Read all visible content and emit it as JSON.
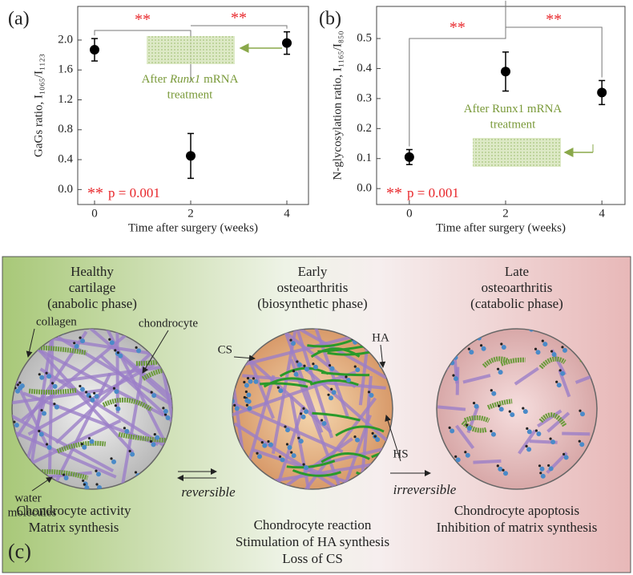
{
  "chart_data": [
    {
      "type": "scatter",
      "panel_label": "(a)",
      "xlabel": "Time after surgery (weeks)",
      "ylabel": "GaGs ratio, I₁₀₆₅/I₁₁₂₃",
      "x": [
        0,
        2,
        4
      ],
      "series": [
        {
          "color": "#000000",
          "values": [
            1.87,
            0.45,
            1.96
          ],
          "errors": [
            0.15,
            0.3,
            0.15
          ]
        }
      ],
      "xlim": [
        -0.35,
        4.45
      ],
      "ylim": [
        -0.2,
        2.45
      ],
      "xticks": [
        0,
        2,
        4
      ],
      "yticks": [
        {
          "value": 0,
          "label": "0.0"
        },
        0.4,
        0.8,
        1.2,
        1.6,
        {
          "value": 2,
          "label": "2.0"
        }
      ],
      "significance": [
        "**",
        "**"
      ],
      "significance_color": "#e8262a",
      "p_marker": "**",
      "p_text": "p = 0.001",
      "treatment_note": {
        "line1": [
          "After ",
          "Runx1",
          " mRNA"
        ],
        "italic": [
          1
        ],
        "line2": "treatment"
      },
      "note_color": "#7a9a3a"
    },
    {
      "type": "scatter",
      "panel_label": "(b)",
      "xlabel": "Time after surgery (weeks)",
      "ylabel": "N-glycosylation ratio, I₁₁₆₅/I₈₅₀",
      "x": [
        0,
        2,
        4
      ],
      "series": [
        {
          "color": "#000000",
          "values": [
            0.105,
            0.39,
            0.32
          ],
          "errors": [
            0.025,
            0.065,
            0.04
          ]
        }
      ],
      "xlim": [
        -0.68,
        4.48
      ],
      "ylim": [
        -0.053,
        0.607
      ],
      "xticks": [
        0,
        2,
        4
      ],
      "yticks": [
        {
          "value": 0,
          "label": "0.0"
        },
        0.1,
        0.2,
        0.3,
        0.4,
        0.5
      ],
      "significance": [
        "**",
        "**"
      ],
      "significance_color": "#e8262a",
      "p_marker": "**",
      "p_text": "p = 0.001",
      "treatment_note": {
        "line1": [
          "After Runx1 mRNA"
        ],
        "italic": [],
        "line2": "treatment"
      },
      "note_color": "#7a9a3a"
    }
  ],
  "diagram": {
    "panel_label": "(c)",
    "stages": [
      {
        "title": [
          "Healthy",
          "cartilage",
          "(anabolic phase)"
        ],
        "caption": [
          "Chondrocyte activity",
          "Matrix synthesis"
        ]
      },
      {
        "title": [
          "Early",
          "osteoarthritis",
          "(biosynthetic phase)"
        ],
        "caption": [
          "Chondrocyte reaction",
          "Stimulation of HA synthesis",
          "Loss of CS"
        ]
      },
      {
        "title": [
          "Late",
          "osteoarthritis",
          "(catabolic phase)"
        ],
        "caption": [
          "Chondrocyte apoptosis",
          "Inhibition of matrix synthesis"
        ]
      }
    ],
    "labels": {
      "collagen": "collagen",
      "chondrocyte": "chondrocyte",
      "water": [
        "water",
        "molecules"
      ],
      "cs": "CS",
      "ha": "HA",
      "hs": "HS"
    },
    "transitions": [
      "reversible",
      "irreversible"
    ]
  }
}
